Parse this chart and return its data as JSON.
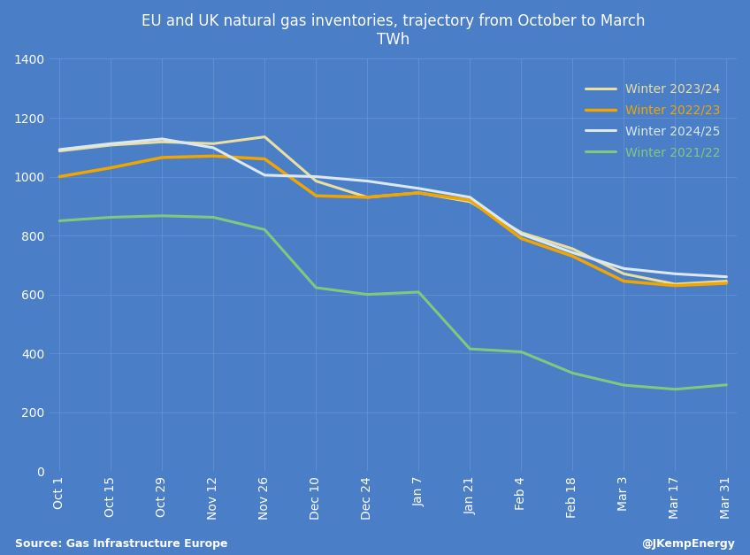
{
  "title_line1": "EU and UK natural gas inventories, trajectory from October to March",
  "title_line2": "TWh",
  "background_color": "#4a7ec7",
  "grid_color": "#6a9bd4",
  "text_color": "white",
  "source_left": "Source: Gas Infrastructure Europe",
  "source_right": "@JKempEnergy",
  "x_labels": [
    "Oct 1",
    "Oct 15",
    "Oct 29",
    "Nov 12",
    "Nov 26",
    "Dec 10",
    "Dec 24",
    "Jan 7",
    "Jan 21",
    "Feb 4",
    "Feb 18",
    "Mar 3",
    "Mar 17",
    "Mar 31"
  ],
  "ylim": [
    0,
    1400
  ],
  "yticks": [
    0,
    200,
    400,
    600,
    800,
    1000,
    1200,
    1400
  ],
  "series": [
    {
      "label": "Winter 2023/24",
      "color": "#e8dfa0",
      "linewidth": 2.2,
      "values": [
        1087,
        1107,
        1118,
        1112,
        1135,
        985,
        930,
        945,
        915,
        810,
        755,
        670,
        635,
        645
      ]
    },
    {
      "label": "Winter 2022/23",
      "color": "#f0a500",
      "linewidth": 2.5,
      "values": [
        1000,
        1030,
        1065,
        1070,
        1060,
        935,
        930,
        945,
        920,
        790,
        730,
        645,
        630,
        638
      ]
    },
    {
      "label": "Winter 2024/25",
      "color": "#dce8f0",
      "linewidth": 2.2,
      "values": [
        1092,
        1112,
        1128,
        1098,
        1005,
        1000,
        985,
        960,
        930,
        805,
        742,
        688,
        670,
        660
      ]
    },
    {
      "label": "Winter 2021/22",
      "color": "#7fc97f",
      "linewidth": 2.2,
      "values": [
        850,
        862,
        867,
        862,
        820,
        623,
        600,
        608,
        415,
        405,
        333,
        292,
        278,
        293
      ]
    }
  ]
}
